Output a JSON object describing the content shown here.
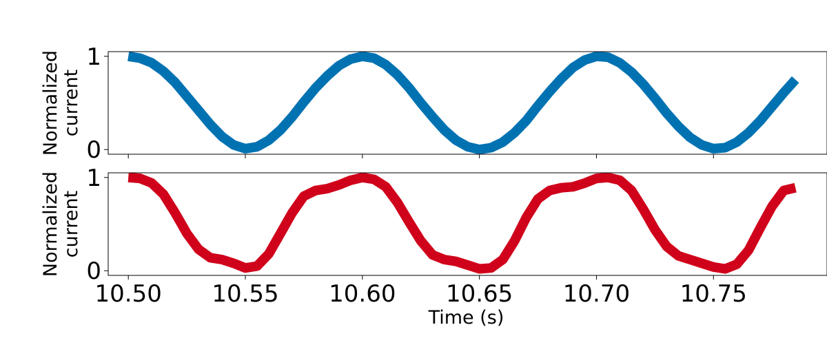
{
  "chart_data": [
    {
      "type": "line",
      "ylabel_lines": [
        "Normalized",
        "current"
      ],
      "xlabel": "",
      "xlim": [
        10.4914,
        10.7985
      ],
      "ylim": [
        -0.05,
        1.05
      ],
      "yticks": [
        0,
        1
      ],
      "xticks": [
        10.5,
        10.55,
        10.6,
        10.65,
        10.7,
        10.75
      ],
      "show_xtick_labels": false,
      "series": [
        {
          "color": "#0072b2",
          "x": [
            10.5,
            10.505,
            10.51,
            10.515,
            10.52,
            10.525,
            10.53,
            10.535,
            10.54,
            10.545,
            10.55,
            10.555,
            10.56,
            10.565,
            10.57,
            10.575,
            10.58,
            10.585,
            10.59,
            10.595,
            10.6,
            10.605,
            10.61,
            10.615,
            10.62,
            10.625,
            10.63,
            10.635,
            10.64,
            10.645,
            10.65,
            10.655,
            10.66,
            10.665,
            10.67,
            10.675,
            10.68,
            10.685,
            10.69,
            10.695,
            10.7,
            10.705,
            10.71,
            10.715,
            10.72,
            10.725,
            10.73,
            10.735,
            10.74,
            10.745,
            10.75,
            10.755,
            10.76,
            10.765,
            10.77,
            10.775,
            10.78,
            10.785
          ],
          "y": [
            1.0,
            0.98,
            0.93,
            0.84,
            0.72,
            0.57,
            0.42,
            0.27,
            0.14,
            0.05,
            0.01,
            0.03,
            0.1,
            0.21,
            0.35,
            0.51,
            0.66,
            0.79,
            0.9,
            0.97,
            1.0,
            0.98,
            0.91,
            0.8,
            0.66,
            0.5,
            0.35,
            0.21,
            0.1,
            0.03,
            0.0,
            0.02,
            0.08,
            0.18,
            0.31,
            0.47,
            0.62,
            0.76,
            0.88,
            0.96,
            1.0,
            0.99,
            0.93,
            0.83,
            0.7,
            0.55,
            0.39,
            0.25,
            0.13,
            0.05,
            0.01,
            0.02,
            0.08,
            0.18,
            0.31,
            0.46,
            0.61,
            0.75
          ]
        }
      ]
    },
    {
      "type": "line",
      "ylabel_lines": [
        "Normalized",
        "current"
      ],
      "xlabel": "Time (s)",
      "xlim": [
        10.4914,
        10.7985
      ],
      "ylim": [
        -0.05,
        1.05
      ],
      "yticks": [
        0,
        1
      ],
      "xticks": [
        10.5,
        10.55,
        10.6,
        10.65,
        10.7,
        10.75
      ],
      "xtick_labels": [
        "10.50",
        "10.55",
        "10.60",
        "10.65",
        "10.70",
        "10.75"
      ],
      "show_xtick_labels": true,
      "series": [
        {
          "color": "#d0021b",
          "x": [
            10.5,
            10.505,
            10.51,
            10.515,
            10.52,
            10.525,
            10.53,
            10.535,
            10.54,
            10.545,
            10.55,
            10.555,
            10.56,
            10.565,
            10.57,
            10.575,
            10.58,
            10.585,
            10.59,
            10.595,
            10.6,
            10.605,
            10.61,
            10.615,
            10.62,
            10.625,
            10.63,
            10.635,
            10.64,
            10.645,
            10.65,
            10.655,
            10.66,
            10.665,
            10.67,
            10.675,
            10.68,
            10.685,
            10.69,
            10.695,
            10.7,
            10.705,
            10.71,
            10.715,
            10.72,
            10.725,
            10.73,
            10.735,
            10.74,
            10.745,
            10.75,
            10.755,
            10.76,
            10.765,
            10.77,
            10.775,
            10.78,
            10.785
          ],
          "y": [
            1.0,
            0.99,
            0.94,
            0.82,
            0.62,
            0.4,
            0.23,
            0.14,
            0.12,
            0.08,
            0.03,
            0.05,
            0.18,
            0.4,
            0.62,
            0.8,
            0.86,
            0.88,
            0.92,
            0.97,
            1.0,
            0.98,
            0.9,
            0.73,
            0.52,
            0.32,
            0.17,
            0.12,
            0.1,
            0.06,
            0.02,
            0.03,
            0.12,
            0.32,
            0.57,
            0.77,
            0.86,
            0.89,
            0.9,
            0.94,
            0.99,
            1.0,
            0.97,
            0.86,
            0.66,
            0.44,
            0.26,
            0.16,
            0.12,
            0.08,
            0.04,
            0.02,
            0.07,
            0.22,
            0.46,
            0.69,
            0.86,
            0.89
          ]
        }
      ]
    }
  ]
}
